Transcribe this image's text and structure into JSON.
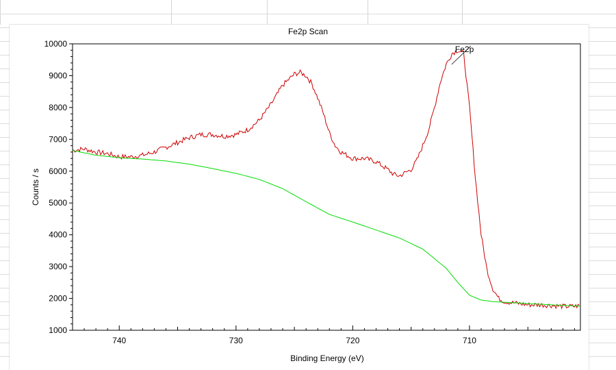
{
  "chart_data": {
    "type": "line",
    "title": "Fe2p Scan",
    "xlabel": "Binding Energy (eV)",
    "ylabel": "Counts / s",
    "xlim": [
      744,
      700.5
    ],
    "ylim": [
      1000,
      10000
    ],
    "x_reversed": true,
    "grid": false,
    "x_ticks": [
      740,
      730,
      720,
      710
    ],
    "x_tick_labels": [
      "740",
      "730",
      "720",
      "710"
    ],
    "y_ticks": [
      1000,
      2000,
      3000,
      4000,
      5000,
      6000,
      7000,
      8000,
      9000,
      10000
    ],
    "y_tick_labels": [
      "1000",
      "2000",
      "3000",
      "4000",
      "5000",
      "6000",
      "7000",
      "8000",
      "9000",
      "10000"
    ],
    "annotation": {
      "label": "Fe2p",
      "x": 711,
      "y": 9850
    },
    "series": [
      {
        "color": "#cc0000",
        "x": [
          744,
          743,
          742,
          741,
          740,
          739,
          738,
          737,
          736,
          735,
          734,
          733,
          732,
          731,
          730,
          729,
          728,
          727,
          726,
          725,
          724.5,
          724,
          723.5,
          723,
          722.5,
          722,
          721.5,
          721,
          720,
          719,
          718,
          717,
          716.5,
          716,
          715,
          714.5,
          714,
          713.5,
          713,
          712.5,
          712,
          711.5,
          711,
          710.5,
          710,
          709.5,
          709,
          708.5,
          708,
          707.5,
          707,
          706,
          705,
          704,
          703,
          702,
          701,
          700.5
        ],
        "y": [
          6650,
          6700,
          6600,
          6550,
          6450,
          6450,
          6500,
          6600,
          6750,
          6900,
          7050,
          7150,
          7150,
          7100,
          7150,
          7300,
          7600,
          8100,
          8700,
          9050,
          9100,
          9000,
          8750,
          8300,
          7800,
          7200,
          6800,
          6600,
          6400,
          6400,
          6300,
          6050,
          5900,
          5850,
          6050,
          6350,
          6800,
          7300,
          8000,
          8800,
          9350,
          9700,
          9800,
          9700,
          8000,
          5800,
          4000,
          2900,
          2300,
          2000,
          1900,
          1850,
          1800,
          1800,
          1780,
          1750,
          1750,
          1780
        ]
      },
      {
        "color": "#00dd00",
        "x": [
          744,
          742,
          740,
          738,
          736,
          734,
          732,
          730,
          728,
          726,
          724,
          722,
          720,
          718,
          716,
          714,
          712,
          711,
          710,
          709,
          708,
          707,
          706,
          704,
          702,
          700.5
        ],
        "y": [
          6650,
          6500,
          6420,
          6380,
          6320,
          6220,
          6080,
          5930,
          5740,
          5450,
          5040,
          4640,
          4400,
          4150,
          3900,
          3550,
          2950,
          2500,
          2100,
          1950,
          1900,
          1880,
          1860,
          1820,
          1780,
          1760
        ]
      }
    ]
  }
}
